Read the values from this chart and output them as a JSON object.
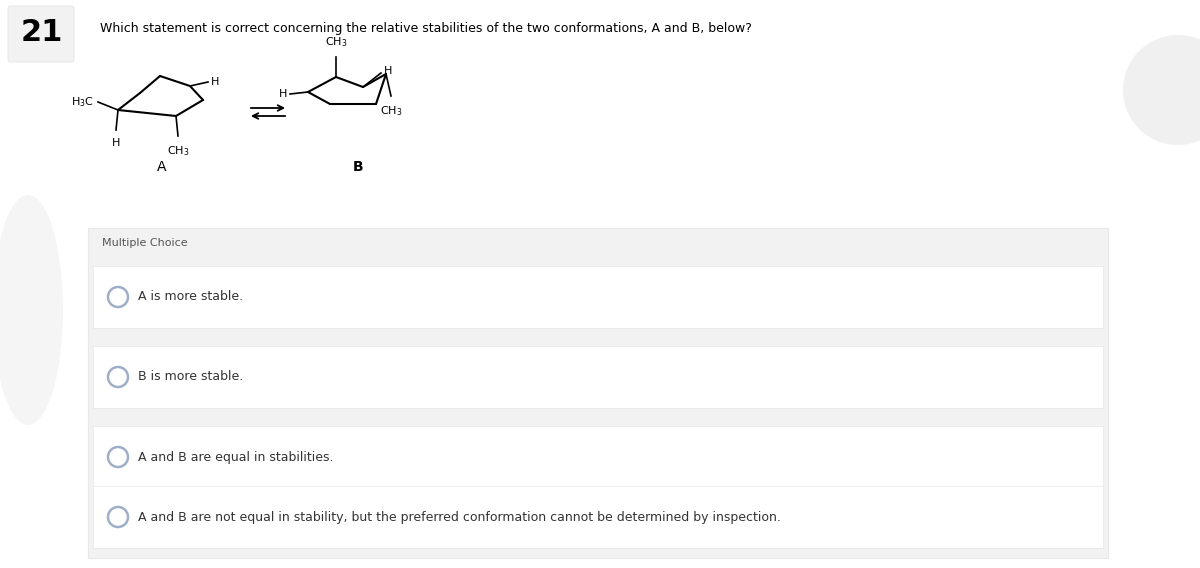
{
  "question_number": "21",
  "question_text": "Which statement is correct concerning the relative stabilities of the two conformations, A and B, below?",
  "label_A": "A",
  "label_B": "B",
  "multiple_choice_label": "Multiple Choice",
  "choices": [
    "A is more stable.",
    "B is more stable.",
    "A and B are equal in stabilities.",
    "A and B are not equal in stability, but the preferred conformation cannot be determined by inspection."
  ],
  "bg_color": "#f7f7f7",
  "white": "#ffffff",
  "mc_bg": "#f0f0f0",
  "choice_bg": "#ffffff",
  "text_color": "#000000",
  "light_gray": "#ebebeb",
  "circle_edge": "#9eb0c8",
  "num_box_color": "#f0f0f0",
  "qnum_fontsize": 22,
  "qtxt_fontsize": 9,
  "choice_fontsize": 9
}
